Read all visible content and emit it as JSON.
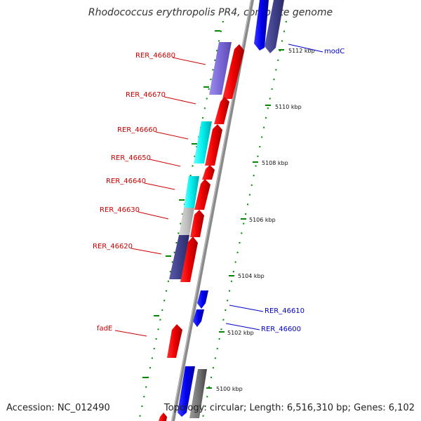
{
  "title": "Rhodococcus erythropolis PR4, complete genome",
  "footer": {
    "accession": "Accession: NC_012490",
    "summary": "Topology: circular; Length: 6,516,310 bp; Genes: 6,102"
  },
  "colors": {
    "forward_gene": "#ff0000",
    "reverse_gene": "#0000ff",
    "label_left": "#cc0000",
    "label_right": "#0000cc",
    "tick": "#008800",
    "backbone": "#888888"
  },
  "kbp_ticks": [
    {
      "label": "5112 kbp"
    },
    {
      "label": "5110 kbp"
    },
    {
      "label": "5108 kbp"
    },
    {
      "label": "5106 kbp"
    },
    {
      "label": "5104 kbp"
    },
    {
      "label": "5102 kbp"
    },
    {
      "label": "5100 kbp"
    }
  ],
  "gene_labels_left": [
    {
      "name": "RER_46680"
    },
    {
      "name": "RER_46670"
    },
    {
      "name": "RER_46660"
    },
    {
      "name": "RER_46650"
    },
    {
      "name": "RER_46640"
    },
    {
      "name": "RER_46630"
    },
    {
      "name": "RER_46620"
    },
    {
      "name": "fadE"
    }
  ],
  "gene_labels_right": [
    {
      "name": "modC"
    },
    {
      "name": "RER_46610"
    },
    {
      "name": "RER_46600"
    }
  ]
}
